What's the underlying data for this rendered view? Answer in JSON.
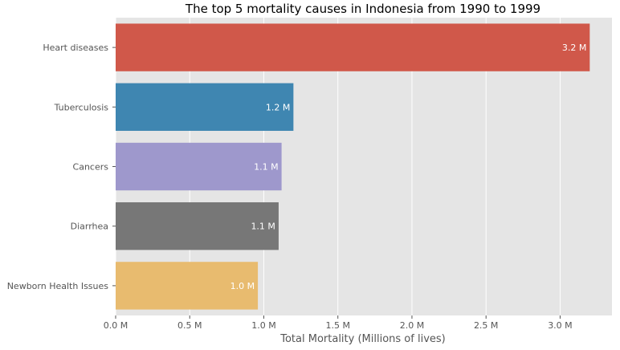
{
  "chart_data": {
    "type": "bar",
    "orientation": "horizontal",
    "title": "The top 5 mortality causes in Indonesia from 1990 to 1999",
    "xlabel": "Total Mortality (Millions of lives)",
    "ylabel": "",
    "xlim": [
      0,
      3.35
    ],
    "grid": true,
    "background": "#e5e5e5",
    "categories": [
      "Heart diseases",
      "Tuberculosis",
      "Cancers",
      "Diarrhea",
      "Newborn Health Issues"
    ],
    "values": [
      3.2,
      1.2,
      1.12,
      1.1,
      0.96
    ],
    "bar_labels": [
      "3.2 M",
      "1.2 M",
      "1.1 M",
      "1.1 M",
      "1.0 M"
    ],
    "colors": [
      "#d0584a",
      "#3f86b1",
      "#9e98cc",
      "#777777",
      "#e8bb6f"
    ],
    "xticks": [
      0,
      0.5,
      1.0,
      1.5,
      2.0,
      2.5,
      3.0
    ],
    "xtick_labels": [
      "0.0 M",
      "0.5 M",
      "1.0 M",
      "1.5 M",
      "2.0 M",
      "2.5 M",
      "3.0 M"
    ]
  }
}
